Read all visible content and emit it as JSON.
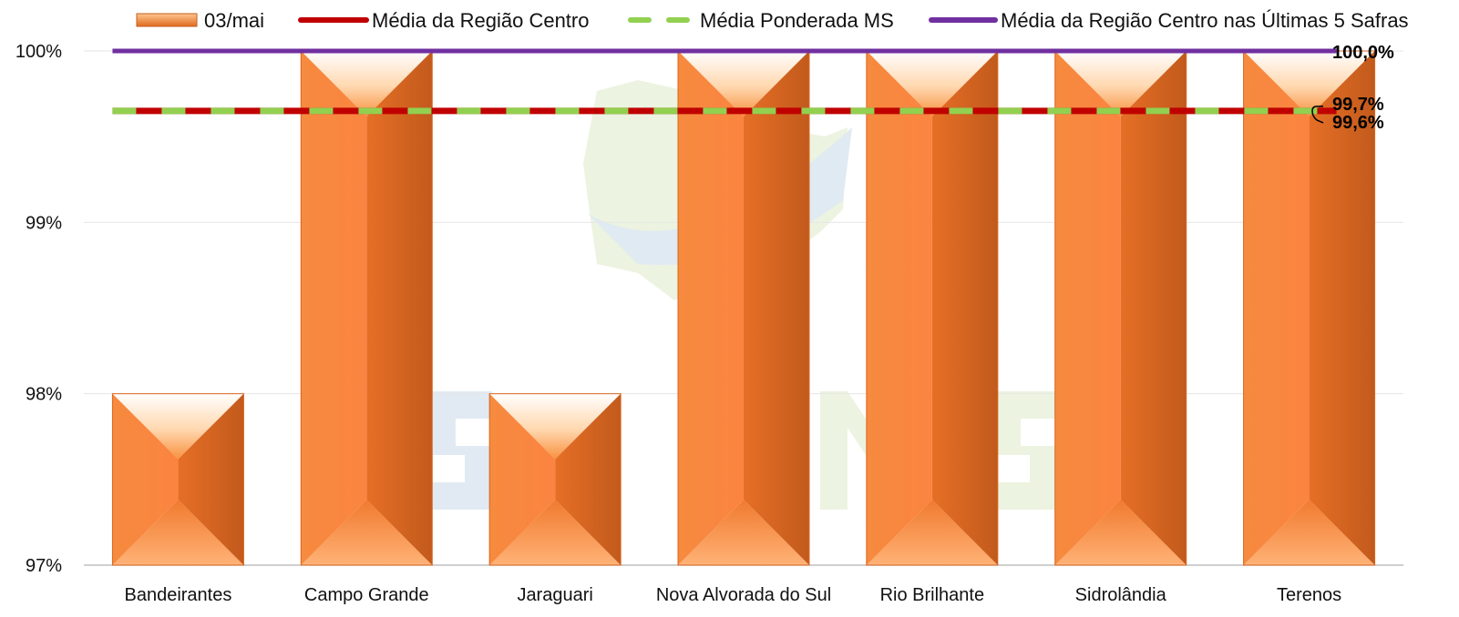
{
  "chart_data": {
    "type": "bar",
    "categories": [
      "Bandeirantes",
      "Campo Grande",
      "Jaraguari",
      "Nova Alvorada do Sul",
      "Rio Brilhante",
      "Sidrolândia",
      "Terenos"
    ],
    "series": [
      {
        "name": "03/mai",
        "kind": "bar",
        "color": "#f47c30",
        "values": [
          98.0,
          100.0,
          98.0,
          100.0,
          100.0,
          100.0,
          100.0
        ]
      },
      {
        "name": "Média da Região Centro",
        "kind": "line",
        "color": "#c00000",
        "value": 99.65,
        "label": "99,7%"
      },
      {
        "name": "Média Ponderada MS",
        "kind": "dashed-line",
        "color": "#92d050",
        "value": 99.65,
        "label": "99,6%"
      },
      {
        "name": "Média da Região Centro nas Últimas 5 Safras",
        "kind": "line",
        "color": "#7030a0",
        "value": 100.0,
        "label": "100,0%"
      }
    ],
    "yticks": [
      "97%",
      "98%",
      "99%",
      "100%"
    ],
    "ylim": [
      97,
      100
    ],
    "grid": true,
    "legend_position": "top"
  }
}
